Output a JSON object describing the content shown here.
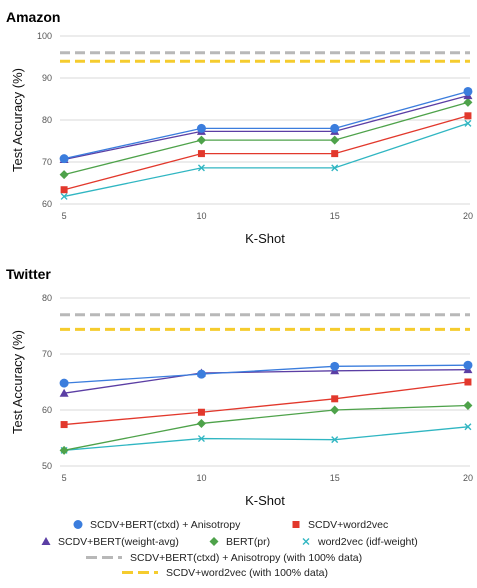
{
  "colors": {
    "scdv_bert_ctxd_aniso": "#3b7ddd",
    "scdv_word2vec": "#e2382c",
    "scdv_bert_weight_avg": "#5b3ea4",
    "bert_pr": "#4ea24a",
    "word2vec_idf": "#30b6c2",
    "ref_bert": "#b8b8b8",
    "ref_word2vec": "#f5cc2e",
    "grid": "#d9d9d9"
  },
  "chart_data": [
    {
      "type": "line",
      "title": "Amazon",
      "xlabel": "K-Shot",
      "ylabel": "Test Accuracy (%)",
      "categories": [
        "5",
        "10",
        "15",
        "20"
      ],
      "ylim": [
        60,
        100
      ],
      "yticks": [
        60,
        70,
        80,
        90,
        100
      ],
      "grid": true,
      "series": [
        {
          "name": "SCDV+BERT(ctxd) + Anisotropy",
          "key": "scdv_bert_ctxd_aniso",
          "marker": "circle",
          "values": [
            70.8,
            78.0,
            78.0,
            86.8
          ]
        },
        {
          "name": "SCDV+BERT(weight-avg)",
          "key": "scdv_bert_weight_avg",
          "marker": "triangle",
          "values": [
            70.6,
            77.3,
            77.3,
            85.8
          ]
        },
        {
          "name": "BERT(pr)",
          "key": "bert_pr",
          "marker": "diamond",
          "values": [
            67.0,
            75.2,
            75.2,
            84.2
          ]
        },
        {
          "name": "SCDV+word2vec",
          "key": "scdv_word2vec",
          "marker": "square",
          "values": [
            63.4,
            72.0,
            72.0,
            81.0
          ]
        },
        {
          "name": "word2vec (idf-weight)",
          "key": "word2vec_idf",
          "marker": "x",
          "values": [
            61.8,
            68.6,
            68.6,
            79.2
          ]
        }
      ],
      "reference_lines": [
        {
          "name": "SCDV+BERT(ctxd) + Anisotropy (with 100% data)",
          "key": "ref_bert",
          "value": 96.0
        },
        {
          "name": "SCDV+word2vec (with 100% data)",
          "key": "ref_word2vec",
          "value": 94.0
        }
      ]
    },
    {
      "type": "line",
      "title": "Twitter",
      "xlabel": "K-Shot",
      "ylabel": "Test Accuracy (%)",
      "categories": [
        "5",
        "10",
        "15",
        "20"
      ],
      "ylim": [
        50,
        80
      ],
      "yticks": [
        50,
        60,
        70,
        80
      ],
      "grid": true,
      "series": [
        {
          "name": "SCDV+BERT(ctxd) + Anisotropy",
          "key": "scdv_bert_ctxd_aniso",
          "marker": "circle",
          "values": [
            64.8,
            66.4,
            67.8,
            68.0
          ]
        },
        {
          "name": "SCDV+BERT(weight-avg)",
          "key": "scdv_bert_weight_avg",
          "marker": "triangle",
          "values": [
            63.0,
            66.6,
            67.0,
            67.2
          ]
        },
        {
          "name": "BERT(pr)",
          "key": "bert_pr",
          "marker": "diamond",
          "values": [
            52.8,
            57.6,
            60.0,
            60.8
          ]
        },
        {
          "name": "SCDV+word2vec",
          "key": "scdv_word2vec",
          "marker": "square",
          "values": [
            57.4,
            59.6,
            62.0,
            65.0
          ]
        },
        {
          "name": "word2vec (idf-weight)",
          "key": "word2vec_idf",
          "marker": "x",
          "values": [
            52.8,
            54.9,
            54.7,
            57.0
          ]
        }
      ],
      "reference_lines": [
        {
          "name": "SCDV+BERT(ctxd) + Anisotropy (with 100% data)",
          "key": "ref_bert",
          "value": 77.0
        },
        {
          "name": "SCDV+word2vec (with 100% data)",
          "key": "ref_word2vec",
          "value": 74.4
        }
      ]
    }
  ],
  "legend": {
    "rows": [
      [
        {
          "label": "SCDV+BERT(ctxd) + Anisotropy",
          "key": "scdv_bert_ctxd_aniso",
          "marker": "circle"
        },
        {
          "label": "SCDV+word2vec",
          "key": "scdv_word2vec",
          "marker": "square"
        }
      ],
      [
        {
          "label": "SCDV+BERT(weight-avg)",
          "key": "scdv_bert_weight_avg",
          "marker": "triangle"
        },
        {
          "label": "BERT(pr)",
          "key": "bert_pr",
          "marker": "diamond"
        },
        {
          "label": "word2vec (idf-weight)",
          "key": "word2vec_idf",
          "marker": "x"
        }
      ],
      [
        {
          "label": "SCDV+BERT(ctxd) + Anisotropy (with 100% data)",
          "key": "ref_bert",
          "marker": "dash"
        }
      ],
      [
        {
          "label": "SCDV+word2vec (with 100% data)",
          "key": "ref_word2vec",
          "marker": "dash"
        }
      ]
    ]
  }
}
